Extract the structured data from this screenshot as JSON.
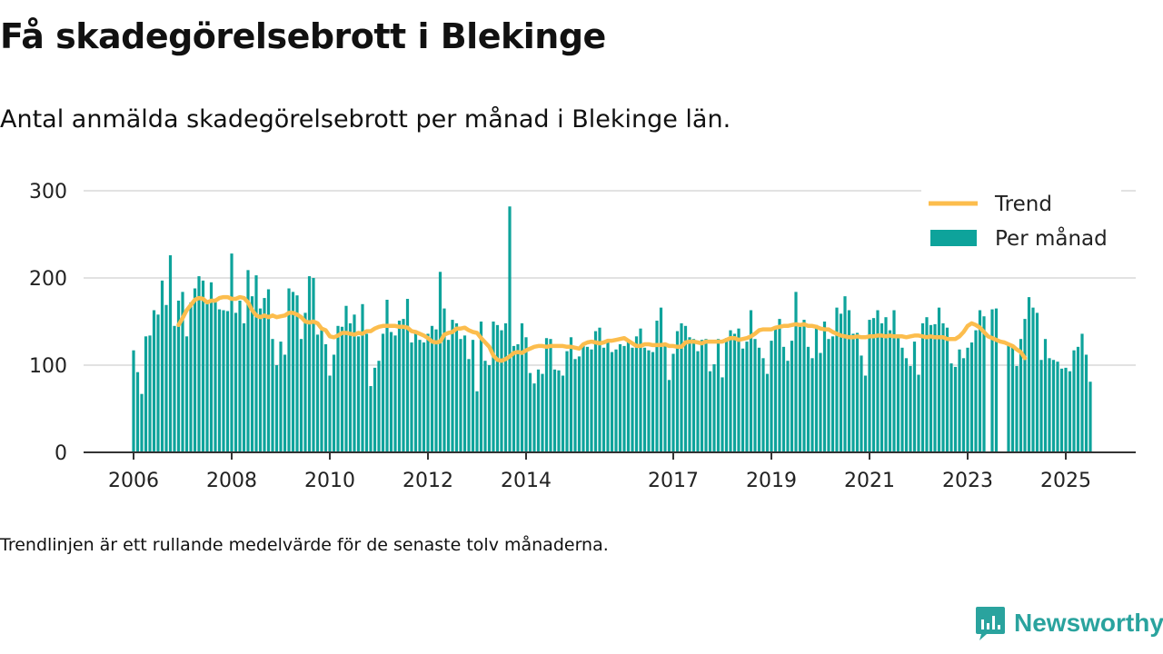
{
  "header": {
    "title": "Få skadegörelsebrott i Blekinge",
    "subtitle": "Antal anmälda skadegörelsebrott per månad i Blekinge län."
  },
  "footer": {
    "note": "Trendlinjen är ett rullande medelvärde för de senaste tolv månaderna.",
    "brand": "Newsworthy"
  },
  "colors": {
    "bars": "#0ea39b",
    "trend": "#fcbd4d",
    "brand": "#2aa39e"
  },
  "chart_data": {
    "type": "bar",
    "x_start": "2006-01",
    "x_end": "2025-09",
    "x_ticks": [
      "2006",
      "2008",
      "2010",
      "2012",
      "2014",
      "2017",
      "2019",
      "2021",
      "2023",
      "2025"
    ],
    "y_ticks": [
      "0",
      "100",
      "200",
      "300"
    ],
    "ylim": [
      0,
      300
    ],
    "legend_placement": "top-right",
    "grid": true,
    "series": [
      {
        "name": "Per månad",
        "kind": "bar",
        "values": [
          117,
          92,
          67,
          133,
          134,
          163,
          158,
          197,
          169,
          226,
          145,
          174,
          184,
          133,
          172,
          188,
          202,
          197,
          171,
          195,
          173,
          164,
          163,
          162,
          228,
          160,
          174,
          148,
          209,
          179,
          203,
          165,
          177,
          187,
          130,
          100,
          127,
          112,
          188,
          184,
          180,
          130,
          160,
          202,
          200,
          135,
          140,
          124,
          88,
          112,
          145,
          144,
          168,
          148,
          158,
          133,
          170,
          136,
          76,
          97,
          105,
          136,
          175,
          138,
          134,
          151,
          153,
          176,
          126,
          140,
          129,
          126,
          136,
          145,
          141,
          207,
          165,
          129,
          152,
          148,
          130,
          134,
          107,
          129,
          70,
          150,
          105,
          100,
          150,
          146,
          140,
          148,
          282,
          122,
          124,
          148,
          132,
          91,
          79,
          95,
          90,
          131,
          130,
          95,
          94,
          88,
          116,
          132,
          107,
          110,
          122,
          121,
          118,
          139,
          143,
          120,
          128,
          115,
          118,
          124,
          122,
          127,
          120,
          133,
          142,
          120,
          117,
          115,
          151,
          166,
          122,
          83,
          113,
          139,
          148,
          145,
          132,
          130,
          116,
          129,
          130,
          93,
          101,
          130,
          86,
          131,
          140,
          136,
          142,
          119,
          127,
          163,
          130,
          120,
          108,
          90,
          128,
          142,
          153,
          121,
          105,
          128,
          184,
          144,
          152,
          121,
          108,
          146,
          114,
          150,
          130,
          133,
          166,
          159,
          179,
          163,
          136,
          137,
          111,
          88,
          152,
          154,
          163,
          148,
          155,
          140,
          163,
          133,
          120,
          108,
          99,
          127,
          89,
          148,
          155,
          146,
          147,
          166,
          148,
          143,
          102,
          98,
          118,
          108,
          120,
          126,
          140,
          163,
          156,
          0,
          164,
          165,
          0,
          0,
          124,
          123,
          99,
          130,
          153,
          178,
          166,
          160,
          106,
          130,
          108,
          106,
          104,
          96,
          97,
          93,
          117,
          121,
          136,
          112,
          81
        ]
      },
      {
        "name": "Trend",
        "kind": "line",
        "start_index": 11,
        "values": [
          146,
          154,
          163,
          169,
          175,
          177,
          176,
          172,
          174,
          174,
          177,
          178,
          178,
          176,
          176,
          178,
          177,
          172,
          163,
          157,
          155,
          157,
          155,
          157,
          155,
          156,
          157,
          160,
          160,
          158,
          155,
          150,
          149,
          150,
          148,
          142,
          140,
          133,
          132,
          134,
          137,
          137,
          136,
          135,
          137,
          136,
          139,
          139,
          142,
          144,
          145,
          145,
          145,
          145,
          144,
          144,
          143,
          139,
          138,
          136,
          134,
          131,
          127,
          126,
          127,
          135,
          137,
          138,
          142,
          142,
          143,
          140,
          138,
          137,
          131,
          126,
          121,
          111,
          106,
          105,
          107,
          110,
          114,
          115,
          114,
          117,
          119,
          121,
          122,
          122,
          121,
          122,
          122,
          122,
          122,
          121,
          121,
          120,
          119,
          124,
          126,
          127,
          126,
          125,
          126,
          128,
          128,
          129,
          130,
          131,
          128,
          125,
          122,
          122,
          124,
          124,
          123,
          123,
          123,
          124,
          122,
          122,
          121,
          121,
          126,
          127,
          127,
          126,
          125,
          127,
          127,
          127,
          127,
          127,
          129,
          131,
          131,
          129,
          130,
          131,
          133,
          136,
          140,
          141,
          141,
          141,
          143,
          144,
          145,
          145,
          146,
          147,
          146,
          147,
          145,
          145,
          144,
          142,
          141,
          141,
          138,
          136,
          134,
          133,
          132,
          132,
          133,
          132,
          132,
          133,
          133,
          134,
          134,
          133,
          134,
          133,
          133,
          133,
          132,
          133,
          134,
          134,
          133,
          132,
          133,
          132,
          132,
          132,
          130,
          130,
          130,
          133,
          138,
          145,
          148,
          146,
          143,
          138,
          133,
          131,
          129,
          127,
          126,
          124,
          122,
          118,
          115,
          108
        ]
      }
    ]
  }
}
